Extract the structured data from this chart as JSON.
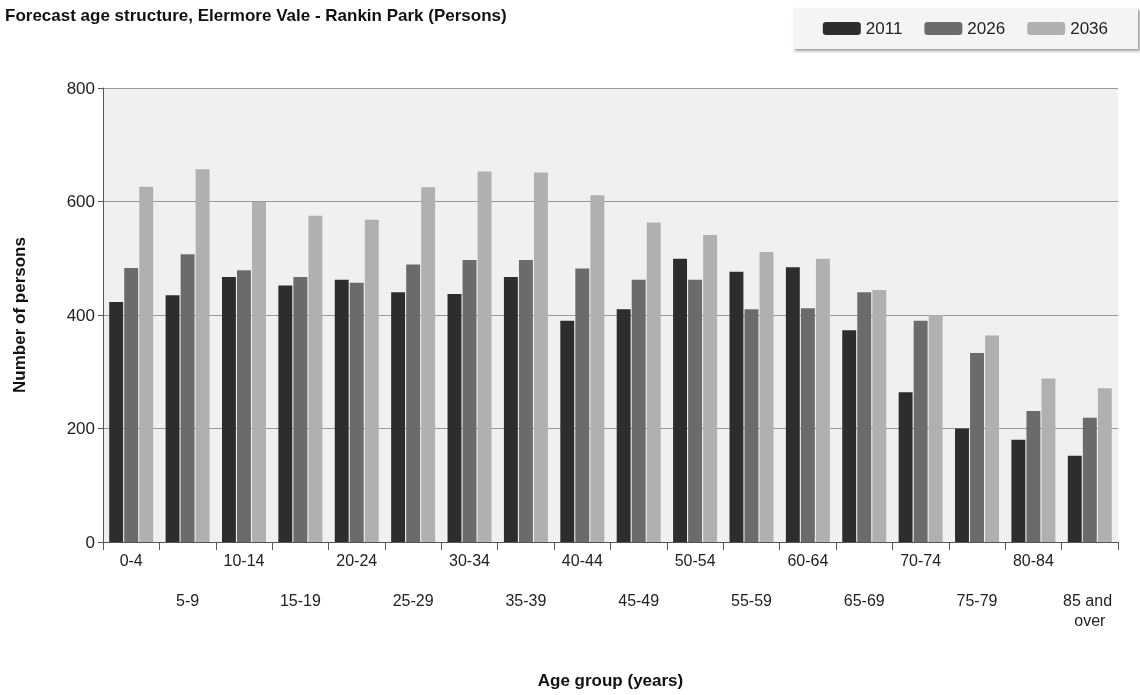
{
  "chart_data": {
    "type": "bar",
    "title": "Forecast age structure, Elermore Vale - Rankin Park (Persons)",
    "xlabel": "Age group (years)",
    "ylabel": "Number of persons",
    "categories": [
      "0-4",
      "5-9",
      "10-14",
      "15-19",
      "20-24",
      "25-29",
      "30-34",
      "35-39",
      "40-44",
      "45-49",
      "50-54",
      "55-59",
      "60-64",
      "65-69",
      "70-74",
      "75-79",
      "80-84",
      "85 and over"
    ],
    "series": [
      {
        "name": "2011",
        "color": "#2d2d2d",
        "values": [
          423,
          435,
          467,
          452,
          462,
          440,
          437,
          467,
          390,
          410,
          499,
          476,
          484,
          373,
          264,
          200,
          180,
          152
        ]
      },
      {
        "name": "2026",
        "color": "#6b6b6b",
        "values": [
          483,
          507,
          479,
          467,
          457,
          489,
          497,
          497,
          482,
          462,
          462,
          410,
          412,
          440,
          390,
          333,
          231,
          219
        ]
      },
      {
        "name": "2036",
        "color": "#b0b0b0",
        "values": [
          626,
          657,
          599,
          575,
          568,
          625,
          653,
          651,
          611,
          563,
          541,
          511,
          499,
          444,
          400,
          364,
          288,
          271
        ]
      }
    ],
    "ylim": [
      0,
      800
    ],
    "yticks": [
      0,
      200,
      400,
      600,
      800
    ],
    "grid": "y",
    "legend": "top right"
  }
}
